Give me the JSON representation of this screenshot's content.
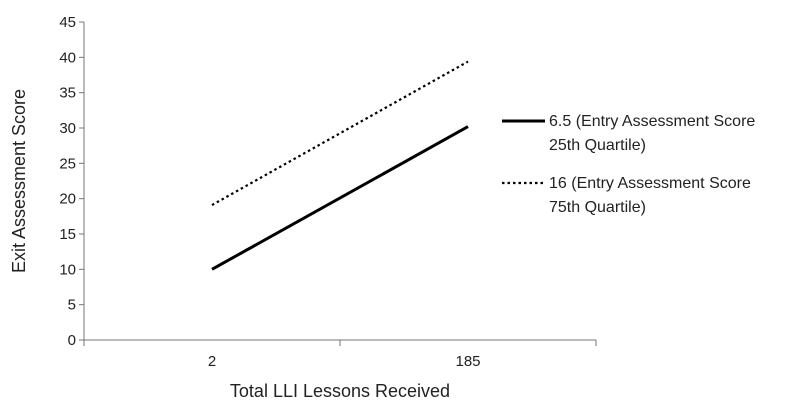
{
  "chart_data": {
    "type": "line",
    "title": "",
    "xlabel": "Total LLI Lessons Received",
    "ylabel": "Exit Assessment Score",
    "categories": [
      "2",
      "185"
    ],
    "ylim": [
      0,
      45
    ],
    "yticks": [
      "0",
      "5",
      "10",
      "15",
      "20",
      "25",
      "30",
      "35",
      "40",
      "45"
    ],
    "grid": false,
    "legend_placement": "right",
    "series": [
      {
        "name": "6.5 (Entry Assessment Score 25th Quartile)",
        "name_lines": [
          "6.5 (Entry Assessment Score",
          "25th Quartile)"
        ],
        "values": [
          10,
          30.2
        ],
        "style": "solid",
        "color": "#000000"
      },
      {
        "name": "16 (Entry Assessment Score 75th Quartile)",
        "name_lines": [
          "16 (Entry Assessment Score",
          "75th Quartile)"
        ],
        "values": [
          19.1,
          39.4
        ],
        "style": "dotted",
        "color": "#000000"
      }
    ]
  }
}
